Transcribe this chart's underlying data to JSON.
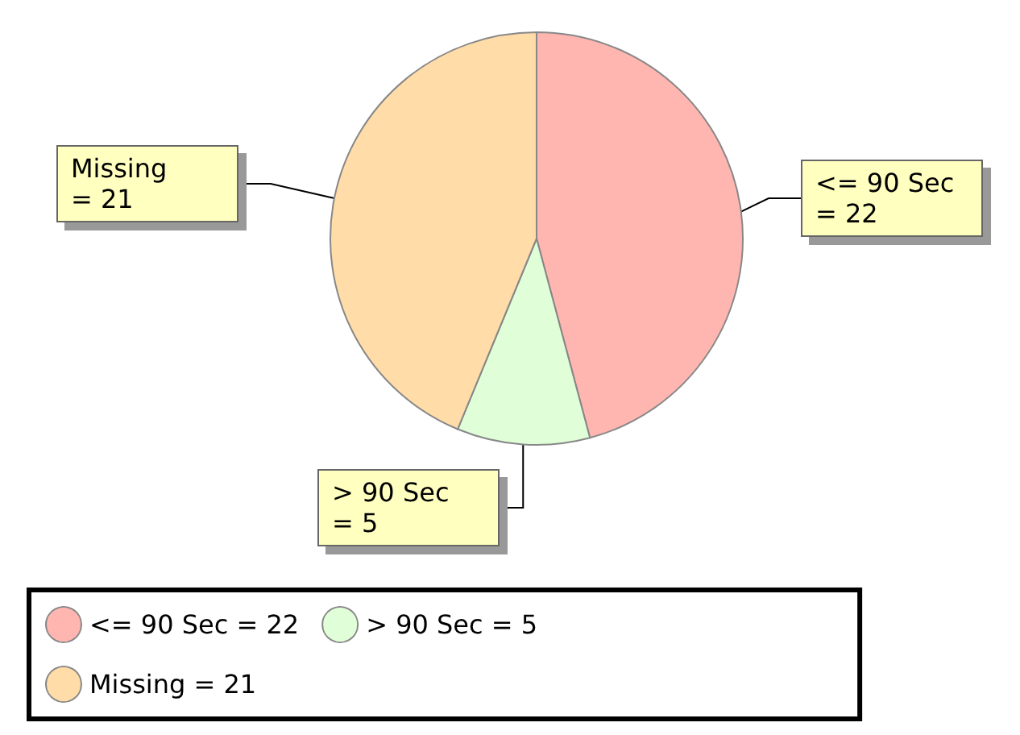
{
  "chart_data": {
    "type": "pie",
    "categories": [
      "<= 90 Sec",
      "> 90 Sec",
      "Missing"
    ],
    "values": [
      22,
      5,
      21
    ],
    "value_labels": [
      "= 22",
      "= 5",
      "= 21"
    ],
    "colors": [
      "#ffb6b0",
      "#e0ffd8",
      "#ffdca8"
    ],
    "data_labels": true,
    "legend": "bottom"
  }
}
